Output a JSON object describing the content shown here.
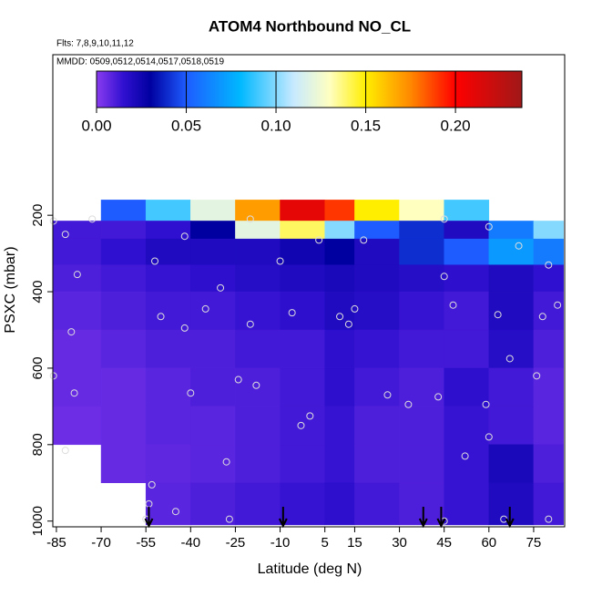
{
  "chart_data": {
    "type": "heatmap",
    "title": "ATOM4 Northbound NO_CL",
    "subtitle": "Flts: 7,8,9,10,11,12",
    "annotation": "MMDD: 0509,0512,0514,0517,0518,0519",
    "x_label": "Latitude (deg N)",
    "y_label": "PSXC (mbar)",
    "xlim": [
      -86.2,
      85.4
    ],
    "ylim": [
      -220,
      1015
    ],
    "xticks": [
      -85,
      -70,
      -55,
      -40,
      -25,
      -10,
      5,
      15,
      30,
      45,
      60,
      75
    ],
    "yticks": [
      200,
      400,
      600,
      800,
      1000
    ],
    "lat_edges": [
      -86,
      -70,
      -55,
      -40,
      -25,
      -10,
      5,
      15,
      30,
      45,
      60,
      75,
      85
    ],
    "pressure_edges": [
      160,
      215,
      262,
      330,
      400,
      500,
      600,
      700,
      800,
      900,
      1010
    ],
    "values": [
      [
        null,
        0.05,
        0.09,
        0.12,
        0.17,
        0.21,
        0.19,
        0.15,
        0.13,
        0.09,
        null,
        null
      ],
      [
        0.012,
        0.012,
        0.015,
        0.03,
        0.12,
        0.14,
        0.1,
        0.05,
        0.04,
        0.02,
        0.06,
        0.1
      ],
      [
        0.012,
        0.015,
        0.02,
        0.02,
        0.02,
        0.025,
        0.03,
        0.02,
        0.04,
        0.05,
        0.07,
        0.06
      ],
      [
        0.01,
        0.012,
        0.014,
        0.016,
        0.018,
        0.02,
        0.022,
        0.02,
        0.018,
        0.016,
        0.02,
        0.015
      ],
      [
        0.008,
        0.01,
        0.012,
        0.012,
        0.014,
        0.016,
        0.02,
        0.018,
        0.014,
        0.012,
        0.02,
        0.012
      ],
      [
        0.006,
        0.008,
        0.01,
        0.01,
        0.012,
        0.012,
        0.016,
        0.014,
        0.012,
        0.012,
        0.018,
        0.01
      ],
      [
        0.006,
        0.006,
        0.008,
        0.01,
        0.01,
        0.012,
        0.016,
        0.012,
        0.01,
        0.016,
        0.012,
        0.008
      ],
      [
        0.005,
        0.006,
        0.008,
        0.008,
        0.01,
        0.012,
        0.014,
        0.01,
        0.01,
        0.014,
        0.012,
        0.008
      ],
      [
        null,
        0.006,
        0.007,
        0.008,
        0.01,
        0.012,
        0.014,
        0.01,
        0.01,
        0.014,
        0.022,
        0.01
      ],
      [
        null,
        null,
        0.008,
        0.01,
        0.012,
        0.014,
        0.016,
        0.012,
        0.01,
        0.014,
        0.02,
        0.012
      ]
    ],
    "clim": [
      0,
      0.237
    ],
    "cticks": [
      {
        "value": 0,
        "label": "0.00"
      },
      {
        "value": 0.05,
        "label": "0.05"
      },
      {
        "value": 0.1,
        "label": "0.10"
      },
      {
        "value": 0.15,
        "label": "0.15"
      },
      {
        "value": 0.2,
        "label": "0.20"
      }
    ],
    "colorscale": [
      [
        0,
        "#8a3cf0"
      ],
      [
        0.015,
        "#3010d0"
      ],
      [
        0.03,
        "#0000a0"
      ],
      [
        0.05,
        "#1e5cff"
      ],
      [
        0.08,
        "#00b8ff"
      ],
      [
        0.11,
        "#c8eaff"
      ],
      [
        0.13,
        "#ffffc0"
      ],
      [
        0.15,
        "#ffee00"
      ],
      [
        0.175,
        "#ff8800"
      ],
      [
        0.2,
        "#ff0000"
      ],
      [
        0.237,
        "#a01818"
      ]
    ],
    "points": {
      "lat": [
        -86,
        -82,
        -78,
        -80,
        -79,
        -82,
        -86,
        -53,
        -54,
        -50,
        -52,
        -42,
        -42,
        -40,
        -35,
        -30,
        -28,
        -27,
        -20,
        -18,
        -24,
        -10,
        -6,
        -3,
        0,
        3,
        10,
        13,
        18,
        15,
        26,
        33,
        43,
        45,
        48,
        52,
        59,
        60,
        63,
        67,
        76,
        78,
        80,
        83,
        70,
        60,
        45,
        -73,
        -20,
        65,
        80,
        45,
        -45,
        -55
      ],
      "pressure": [
        215,
        250,
        355,
        505,
        665,
        815,
        620,
        905,
        955,
        465,
        320,
        255,
        495,
        665,
        445,
        390,
        845,
        995,
        485,
        645,
        630,
        320,
        455,
        750,
        725,
        265,
        465,
        485,
        265,
        445,
        670,
        695,
        675,
        360,
        435,
        830,
        695,
        780,
        460,
        575,
        620,
        465,
        330,
        435,
        280,
        230,
        210,
        210,
        210,
        995,
        995,
        1000,
        975,
        995
      ]
    },
    "arrows": [
      -54,
      -9,
      38,
      44,
      67
    ]
  }
}
